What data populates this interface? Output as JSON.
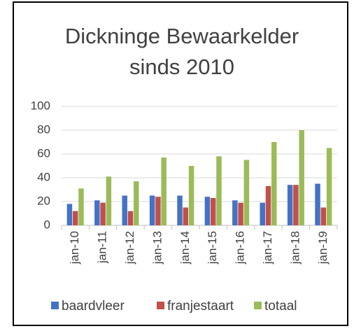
{
  "chart_data": {
    "type": "bar",
    "title": "Dickninge Bewaarkelder sinds 2010",
    "categories": [
      "jan-10",
      "jan-11",
      "jan-12",
      "jan-13",
      "jan-14",
      "jan-15",
      "jan-16",
      "jan-17",
      "jan-18",
      "jan-19"
    ],
    "series": [
      {
        "name": "baardvleer",
        "color": "#4472c4",
        "values": [
          18,
          21,
          25,
          25,
          25,
          24,
          21,
          19,
          34,
          35
        ]
      },
      {
        "name": "franjestaart",
        "color": "#c0504d",
        "values": [
          12,
          19,
          12,
          24,
          15,
          23,
          19,
          33,
          34,
          15
        ]
      },
      {
        "name": "totaal",
        "color": "#9bbb59",
        "values": [
          31,
          41,
          37,
          57,
          50,
          58,
          55,
          70,
          80,
          65
        ]
      }
    ],
    "ylim": [
      0,
      100
    ],
    "yticks": [
      0,
      20,
      40,
      60,
      80,
      100
    ],
    "grid": true,
    "legend": "bottom"
  }
}
